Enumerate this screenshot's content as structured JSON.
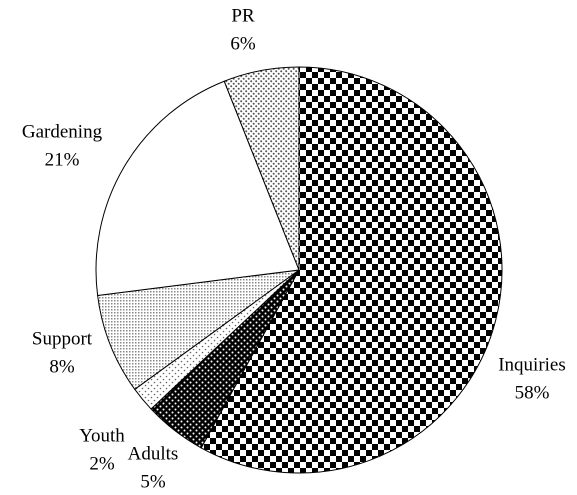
{
  "chart_data": {
    "type": "pie",
    "categories": [
      "Inquiries",
      "Adults",
      "Youth",
      "Support",
      "Gardening",
      "PR"
    ],
    "values": [
      58,
      5,
      2,
      8,
      21,
      6
    ],
    "value_labels": [
      "58%",
      "5%",
      "2%",
      "8%",
      "21%",
      "6%"
    ]
  }
}
